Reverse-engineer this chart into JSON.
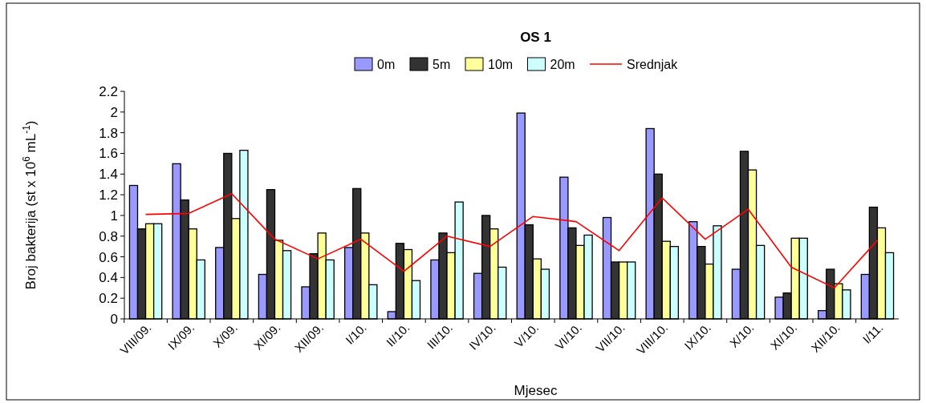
{
  "chart_data": {
    "type": "bar",
    "title": "OS 1",
    "xlabel": "Mjesec",
    "ylabel": "Broj bakterija (st x 10$^{6}$ mL$^{-1}$)",
    "categories": [
      "VIII/09.",
      "IX/09.",
      "X/09.",
      "XI/09.",
      "XII/09.",
      "I/10.",
      "II/10.",
      "III/10.",
      "IV/10.",
      "V/10.",
      "VI/10.",
      "VII/10.",
      "VIII/10.",
      "IX/10.",
      "X/10.",
      "XI/10.",
      "XII/10.",
      "I/11."
    ],
    "series": [
      {
        "name": "0m",
        "color": "#9999ff",
        "values": [
          1.29,
          1.5,
          0.69,
          0.43,
          0.31,
          0.69,
          0.07,
          0.57,
          0.44,
          1.99,
          1.37,
          0.98,
          1.84,
          0.94,
          0.48,
          0.21,
          0.08,
          0.43
        ]
      },
      {
        "name": "5m",
        "color": "#333333",
        "values": [
          0.87,
          1.15,
          1.6,
          1.25,
          0.63,
          1.26,
          0.73,
          0.83,
          1.0,
          0.91,
          0.88,
          0.55,
          1.4,
          0.7,
          1.62,
          0.25,
          0.48,
          1.08
        ]
      },
      {
        "name": "10m",
        "color": "#ffff99",
        "values": [
          0.92,
          0.87,
          0.97,
          0.76,
          0.83,
          0.83,
          0.67,
          0.64,
          0.87,
          0.58,
          0.71,
          0.55,
          0.75,
          0.53,
          1.44,
          0.78,
          0.34,
          0.88
        ]
      },
      {
        "name": "20m",
        "color": "#ccffff",
        "values": [
          0.92,
          0.57,
          1.63,
          0.66,
          0.57,
          0.33,
          0.37,
          1.13,
          0.5,
          0.48,
          0.81,
          0.55,
          0.7,
          0.9,
          0.71,
          0.78,
          0.28,
          0.64
        ]
      },
      {
        "name": "Srednjak",
        "type": "line",
        "color": "#ff0000",
        "values": [
          1.01,
          1.02,
          1.21,
          0.77,
          0.58,
          0.77,
          0.46,
          0.8,
          0.7,
          0.99,
          0.94,
          0.66,
          1.17,
          0.77,
          1.06,
          0.5,
          0.3,
          0.76
        ]
      }
    ],
    "ylim": [
      0,
      2.2
    ],
    "yticks": [
      0,
      0.2,
      0.4,
      0.6,
      0.8,
      1,
      1.2,
      1.4,
      1.6,
      1.8,
      2,
      2.2
    ],
    "legend": "top",
    "marker": "none"
  }
}
